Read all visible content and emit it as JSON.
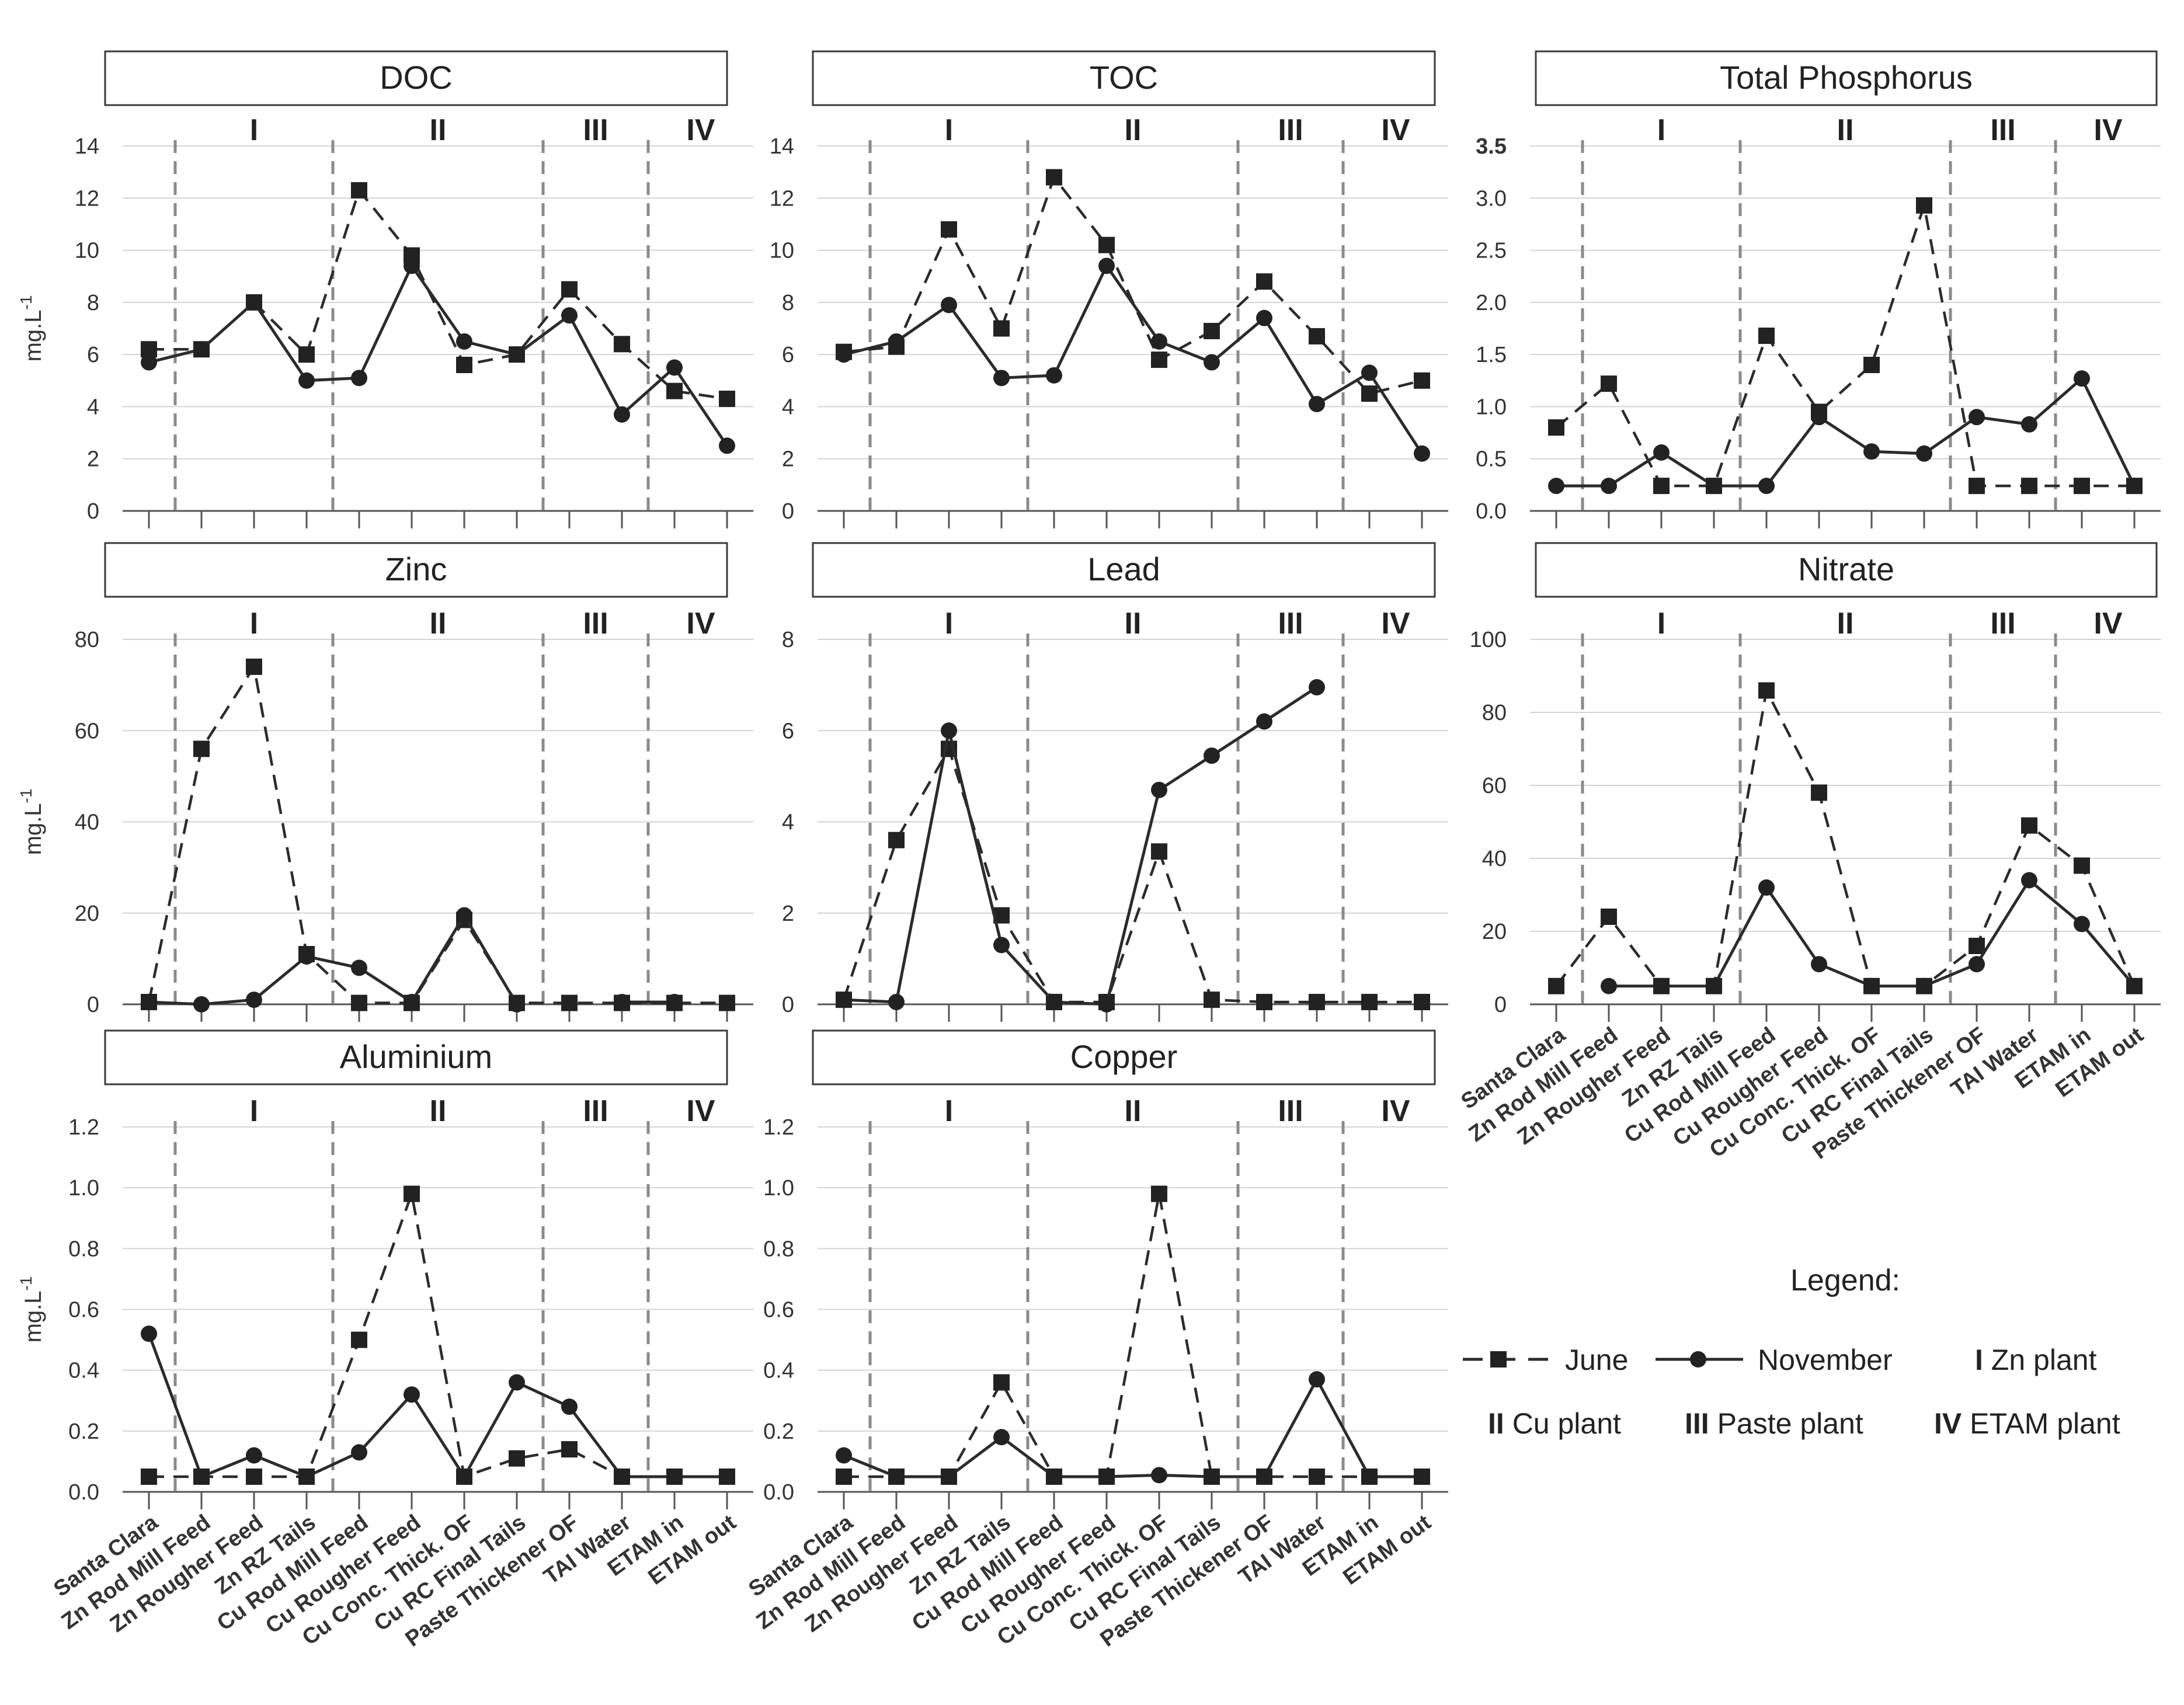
{
  "figure": {
    "categories": [
      "Santa Clara",
      "Zn Rod Mill Feed",
      "Zn Rougher Feed",
      "Zn RZ Tails",
      "Cu Rod Mill Feed",
      "Cu Rougher Feed",
      "Cu Conc. Thick. OF",
      "Cu RC Final Tails",
      "Paste Thickener OF",
      "TAI Water",
      "ETAM in",
      "ETAM out"
    ],
    "ylabel_base": "mg.L",
    "ylabel_sup": "-1",
    "colors": {
      "line": "#2b2b2b",
      "grid": "#d4d4d4",
      "divider": "#8a8a8a",
      "axis": "#555555"
    }
  },
  "legend": {
    "title": "Legend:",
    "june": "June",
    "november": "November",
    "plants": [
      {
        "numeral": "I",
        "label": "Zn plant"
      },
      {
        "numeral": "II",
        "label": "Cu plant"
      },
      {
        "numeral": "III",
        "label": "Paste plant"
      },
      {
        "numeral": "IV",
        "label": "ETAM plant"
      }
    ]
  },
  "chart_data": [
    {
      "type": "line",
      "title": "DOC",
      "groups": [
        "I",
        "II",
        "III",
        "IV"
      ],
      "ylim": [
        0,
        14
      ],
      "yticks": [
        "0",
        "2",
        "4",
        "6",
        "8",
        "10",
        "12",
        "14"
      ],
      "series": [
        {
          "name": "June",
          "style": "dashed",
          "values": [
            6.2,
            6.2,
            8.0,
            6.0,
            12.3,
            9.8,
            5.6,
            6.0,
            8.5,
            6.4,
            4.6,
            4.3
          ]
        },
        {
          "name": "November",
          "style": "solid",
          "values": [
            5.7,
            6.2,
            8.0,
            5.0,
            5.1,
            9.4,
            6.5,
            6.0,
            7.5,
            3.7,
            5.5,
            2.5
          ]
        }
      ]
    },
    {
      "type": "line",
      "title": "TOC",
      "groups": [
        "I",
        "II",
        "III",
        "IV"
      ],
      "ylim": [
        0,
        14
      ],
      "yticks": [
        "0",
        "2",
        "4",
        "6",
        "8",
        "10",
        "12",
        "14"
      ],
      "series": [
        {
          "name": "June",
          "style": "dashed",
          "values": [
            6.1,
            6.3,
            10.8,
            7.0,
            12.8,
            10.2,
            5.8,
            6.9,
            8.8,
            6.7,
            4.5,
            5.0
          ]
        },
        {
          "name": "November",
          "style": "solid",
          "values": [
            6.0,
            6.5,
            7.9,
            5.1,
            5.2,
            9.4,
            6.5,
            5.7,
            7.4,
            4.1,
            5.3,
            2.2
          ]
        }
      ]
    },
    {
      "type": "line",
      "title": "Total Phosphorus",
      "groups": [
        "I",
        "II",
        "III",
        "IV"
      ],
      "ylim": [
        0,
        3.5
      ],
      "yticks": [
        "0.0",
        "0.5",
        "1.0",
        "1.5",
        "2.0",
        "2.5",
        "3.0",
        "3.5"
      ],
      "series": [
        {
          "name": "June",
          "style": "dashed",
          "values": [
            0.8,
            1.22,
            0.24,
            0.24,
            1.68,
            0.95,
            1.4,
            2.93,
            0.24,
            0.24,
            0.24,
            0.24
          ]
        },
        {
          "name": "November",
          "style": "solid",
          "values": [
            0.24,
            0.24,
            0.56,
            0.24,
            0.24,
            0.9,
            0.57,
            0.55,
            0.9,
            0.83,
            1.27,
            0.24
          ]
        }
      ]
    },
    {
      "type": "line",
      "title": "Zinc",
      "groups": [
        "I",
        "II",
        "III",
        "IV"
      ],
      "ylim": [
        0,
        80
      ],
      "yticks": [
        "0",
        "20",
        "40",
        "60",
        "80"
      ],
      "series": [
        {
          "name": "June",
          "style": "dashed",
          "values": [
            0.5,
            56,
            74,
            11,
            0.3,
            0.3,
            18.5,
            0.3,
            0.3,
            0.3,
            0.3,
            0.3
          ]
        },
        {
          "name": "November",
          "style": "solid",
          "values": [
            0.5,
            0,
            1,
            10.5,
            8,
            0.5,
            19.5,
            0,
            null,
            0.5,
            0.5,
            null
          ]
        }
      ]
    },
    {
      "type": "line",
      "title": "Lead",
      "groups": [
        "I",
        "II",
        "III",
        "IV"
      ],
      "ylim": [
        0,
        8
      ],
      "yticks": [
        "0",
        "2",
        "4",
        "6",
        "8"
      ],
      "series": [
        {
          "name": "June",
          "style": "dashed",
          "values": [
            0.1,
            3.6,
            5.6,
            1.95,
            0.05,
            0.05,
            3.35,
            0.1,
            0.05,
            0.05,
            0.05,
            0.05
          ]
        },
        {
          "name": "November",
          "style": "solid",
          "values": [
            0.1,
            0.05,
            6.0,
            1.3,
            0.05,
            0.0,
            4.7,
            5.45,
            6.2,
            6.95,
            null,
            null
          ]
        }
      ]
    },
    {
      "type": "line",
      "title": "Nitrate",
      "groups": [
        "I",
        "II",
        "III",
        "IV"
      ],
      "ylim": [
        0,
        100
      ],
      "yticks": [
        "0",
        "20",
        "40",
        "60",
        "80",
        "100"
      ],
      "series": [
        {
          "name": "June",
          "style": "dashed",
          "values": [
            5,
            24,
            5,
            5,
            86,
            58,
            5,
            5,
            16,
            49,
            38,
            5
          ]
        },
        {
          "name": "November",
          "style": "solid",
          "values": [
            null,
            5,
            5,
            5,
            32,
            11,
            5,
            5,
            11,
            34,
            22,
            5
          ]
        }
      ]
    },
    {
      "type": "line",
      "title": "Aluminium",
      "groups": [
        "I",
        "II",
        "III",
        "IV"
      ],
      "ylim": [
        0,
        1.2
      ],
      "yticks": [
        "0.0",
        "0.2",
        "0.4",
        "0.6",
        "0.8",
        "1.0",
        "1.2"
      ],
      "series": [
        {
          "name": "June",
          "style": "dashed",
          "values": [
            0.05,
            0.05,
            0.05,
            0.05,
            0.5,
            0.98,
            0.05,
            0.11,
            0.14,
            0.05,
            0.05,
            0.05
          ]
        },
        {
          "name": "November",
          "style": "solid",
          "values": [
            0.52,
            0.05,
            0.12,
            0.05,
            0.13,
            0.32,
            0.05,
            0.36,
            0.28,
            0.05,
            0.05,
            0.05
          ]
        }
      ]
    },
    {
      "type": "line",
      "title": "Copper",
      "groups": [
        "I",
        "II",
        "III",
        "IV"
      ],
      "ylim": [
        0,
        1.2
      ],
      "yticks": [
        "0.0",
        "0.2",
        "0.4",
        "0.6",
        "0.8",
        "1.0",
        "1.2"
      ],
      "series": [
        {
          "name": "June",
          "style": "dashed",
          "values": [
            0.05,
            0.05,
            0.05,
            0.36,
            0.05,
            0.05,
            0.98,
            0.05,
            0.05,
            0.05,
            0.05,
            0.05
          ]
        },
        {
          "name": "November",
          "style": "solid",
          "values": [
            0.12,
            0.05,
            0.05,
            0.18,
            0.05,
            0.05,
            0.055,
            0.05,
            0.05,
            0.37,
            0.05,
            0.05
          ]
        }
      ]
    }
  ]
}
